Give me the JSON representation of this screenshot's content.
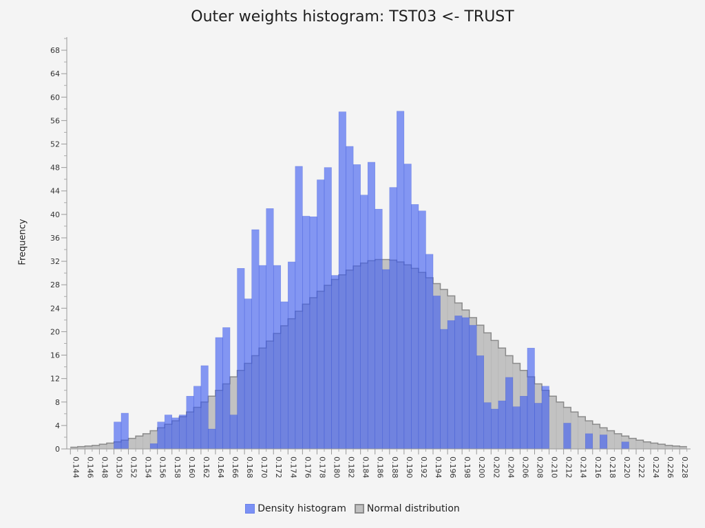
{
  "chart_data": {
    "type": "bar",
    "title": "Outer weights histogram: TST03 <- TRUST",
    "xlabel": "",
    "ylabel": "Frequency",
    "xlim": [
      0.1435,
      0.2295
    ],
    "ylim": [
      0,
      70
    ],
    "y_ticks": [
      0,
      4,
      8,
      12,
      16,
      20,
      24,
      28,
      32,
      36,
      40,
      44,
      48,
      52,
      56,
      60,
      64,
      68
    ],
    "x_ticks": [
      "0.144",
      "0.146",
      "0.148",
      "0.150",
      "0.152",
      "0.154",
      "0.156",
      "0.158",
      "0.160",
      "0.162",
      "0.164",
      "0.166",
      "0.168",
      "0.170",
      "0.172",
      "0.174",
      "0.176",
      "0.178",
      "0.180",
      "0.182",
      "0.184",
      "0.186",
      "0.188",
      "0.190",
      "0.192",
      "0.194",
      "0.196",
      "0.198",
      "0.200",
      "0.202",
      "0.204",
      "0.206",
      "0.208",
      "0.210",
      "0.212",
      "0.214",
      "0.216",
      "0.218",
      "0.220",
      "0.222",
      "0.224",
      "0.226",
      "0.228"
    ],
    "bin_start": 0.144,
    "bin_width": 0.001,
    "legend": "bottom-center",
    "grid": false,
    "series": [
      {
        "name": "Density histogram",
        "color": "#7b91f5",
        "values": [
          0,
          0,
          0,
          0,
          0,
          0,
          4.6,
          6.1,
          0,
          0,
          0,
          0.9,
          4.6,
          5.8,
          5.3,
          5.8,
          9.0,
          10.7,
          14.2,
          3.4,
          19.0,
          20.7,
          5.8,
          30.8,
          25.6,
          37.4,
          31.3,
          41.0,
          31.3,
          25.1,
          31.9,
          48.2,
          39.7,
          39.6,
          45.9,
          48.0,
          29.6,
          57.5,
          51.6,
          48.5,
          43.3,
          48.9,
          40.9,
          30.6,
          44.6,
          57.6,
          48.6,
          41.7,
          40.6,
          33.2,
          26.1,
          20.4,
          21.9,
          22.7,
          22.4,
          21.1,
          15.9,
          7.9,
          6.8,
          8.2,
          12.2,
          7.2,
          9.0,
          17.2,
          7.8,
          10.7,
          0,
          0,
          4.4,
          0,
          0,
          2.6,
          0,
          2.4,
          0,
          0,
          1.2,
          0,
          0,
          0,
          0,
          0,
          0,
          0,
          0
        ]
      },
      {
        "name": "Normal distribution",
        "color": "#c0c0c0",
        "values": [
          0.3,
          0.4,
          0.5,
          0.6,
          0.8,
          1.0,
          1.2,
          1.5,
          1.8,
          2.2,
          2.6,
          3.1,
          3.6,
          4.2,
          4.8,
          5.5,
          6.3,
          7.1,
          8.0,
          9.0,
          10.0,
          11.1,
          12.3,
          13.4,
          14.6,
          15.9,
          17.2,
          18.4,
          19.7,
          21.0,
          22.2,
          23.5,
          24.7,
          25.8,
          26.9,
          27.9,
          28.9,
          29.7,
          30.5,
          31.2,
          31.7,
          32.1,
          32.3,
          32.3,
          32.2,
          31.9,
          31.4,
          30.8,
          30.1,
          29.2,
          28.2,
          27.2,
          26.1,
          24.9,
          23.7,
          22.4,
          21.1,
          19.8,
          18.5,
          17.2,
          15.9,
          14.6,
          13.4,
          12.3,
          11.1,
          10.0,
          9.0,
          8.0,
          7.1,
          6.3,
          5.5,
          4.8,
          4.2,
          3.6,
          3.1,
          2.6,
          2.2,
          1.8,
          1.5,
          1.2,
          1.0,
          0.8,
          0.6,
          0.5,
          0.4
        ]
      }
    ]
  }
}
